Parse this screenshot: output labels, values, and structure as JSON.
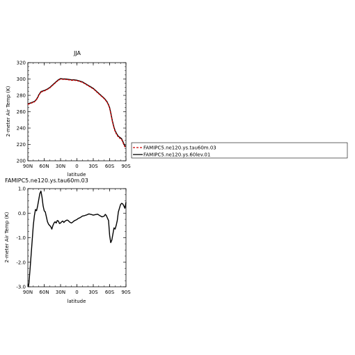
{
  "chart_data": [
    {
      "type": "line",
      "title": "JJA",
      "xlabel": "latitude",
      "ylabel": "2-meter Air Temp (K)",
      "xlim": [
        90,
        -90
      ],
      "ylim": [
        200,
        320
      ],
      "xticks": [
        90,
        60,
        30,
        0,
        -30,
        -60,
        -90
      ],
      "xtick_labels": [
        "90N",
        "60N",
        "30N",
        "0",
        "30S",
        "60S",
        "90S"
      ],
      "yticks": [
        200,
        220,
        240,
        260,
        280,
        300,
        320
      ],
      "ytick_labels": [
        "200",
        "220",
        "240",
        "260",
        "280",
        "300",
        "320"
      ],
      "legend_position": "right",
      "series": [
        {
          "name": "FAMIPC5.ne120.ys.tau60m.03",
          "color": "#cc0000",
          "dash": "dashed",
          "x": [
            90,
            86,
            82,
            78,
            75,
            72,
            70,
            66,
            62,
            58,
            55,
            50,
            45,
            40,
            35,
            30,
            25,
            20,
            15,
            10,
            5,
            0,
            -5,
            -10,
            -15,
            -20,
            -25,
            -30,
            -35,
            -40,
            -45,
            -50,
            -55,
            -58,
            -60,
            -62,
            -65,
            -68,
            -70,
            -73,
            -76,
            -78,
            -80,
            -82,
            -84,
            -86,
            -88,
            -90
          ],
          "y": [
            269,
            270,
            271,
            272,
            274,
            277,
            280,
            284,
            285,
            286,
            287,
            289,
            292,
            295,
            298,
            300,
            299.5,
            299.5,
            299,
            298.5,
            298.5,
            298,
            297,
            296,
            294,
            292,
            290,
            288,
            285,
            282,
            279,
            276,
            272,
            268,
            264,
            258,
            248,
            240,
            236,
            232,
            229,
            228,
            227,
            226,
            223,
            220,
            217,
            217
          ]
        },
        {
          "name": "FAMIPC5.ne120.ys.60lev.01",
          "color": "#000000",
          "dash": "solid",
          "x": [
            90,
            86,
            82,
            78,
            75,
            72,
            70,
            66,
            62,
            58,
            55,
            50,
            45,
            40,
            35,
            30,
            25,
            20,
            15,
            10,
            5,
            0,
            -5,
            -10,
            -15,
            -20,
            -25,
            -30,
            -35,
            -40,
            -45,
            -50,
            -55,
            -58,
            -60,
            -62,
            -65,
            -68,
            -70,
            -73,
            -76,
            -78,
            -80,
            -82,
            -84,
            -86,
            -88,
            -90
          ],
          "y": [
            269.5,
            270.5,
            271.5,
            272.5,
            274.5,
            277.5,
            280.5,
            284.5,
            285.5,
            286.5,
            287.5,
            289.5,
            292.5,
            295.5,
            298.5,
            300.5,
            300,
            300,
            299.5,
            299,
            299,
            298.5,
            297.5,
            296.5,
            294.5,
            292.5,
            290.5,
            288.5,
            285.5,
            282.5,
            279.5,
            276.5,
            272.5,
            268.5,
            265,
            259,
            249,
            241,
            237,
            233,
            230,
            229,
            228,
            227,
            224,
            221,
            218,
            218
          ]
        }
      ]
    },
    {
      "type": "line",
      "title": "FAMIPC5.ne120.ys.tau60m.03",
      "xlabel": "latitude",
      "ylabel": "2-meter Air Temp (K)",
      "xlim": [
        90,
        -90
      ],
      "ylim": [
        -3.0,
        1.0
      ],
      "xticks": [
        90,
        60,
        30,
        0,
        -30,
        -60,
        -90
      ],
      "xtick_labels": [
        "90N",
        "60N",
        "30N",
        "0",
        "30S",
        "60S",
        "90S"
      ],
      "yticks": [
        -3.0,
        -2.0,
        -1.0,
        0.0,
        1.0
      ],
      "ytick_labels": [
        "-3.0",
        "-2.0",
        "-1.0",
        "0.0",
        "1.0"
      ],
      "series": [
        {
          "color": "#000000",
          "dash": "solid",
          "x": [
            89,
            88,
            86,
            84,
            82,
            80,
            78,
            76,
            74,
            72,
            70,
            68,
            66,
            64,
            62,
            60,
            58,
            56,
            54,
            52,
            50,
            48,
            46,
            44,
            42,
            40,
            38,
            36,
            34,
            32,
            30,
            28,
            26,
            24,
            22,
            20,
            18,
            16,
            14,
            12,
            10,
            8,
            6,
            4,
            2,
            0,
            -2,
            -4,
            -6,
            -8,
            -10,
            -14,
            -18,
            -22,
            -26,
            -30,
            -34,
            -38,
            -42,
            -46,
            -50,
            -52,
            -54,
            -56,
            -58,
            -60,
            -62,
            -64,
            -66,
            -68,
            -70,
            -72,
            -74,
            -76,
            -78,
            -80,
            -82,
            -84,
            -86,
            -88,
            -90
          ],
          "y": [
            -3.0,
            -2.85,
            -2.3,
            -1.7,
            -1.1,
            -0.5,
            -0.1,
            0.15,
            0.1,
            0.3,
            0.55,
            0.8,
            0.9,
            0.65,
            0.3,
            0.1,
            0.05,
            -0.15,
            -0.35,
            -0.45,
            -0.5,
            -0.55,
            -0.65,
            -0.5,
            -0.4,
            -0.35,
            -0.4,
            -0.3,
            -0.32,
            -0.42,
            -0.4,
            -0.35,
            -0.32,
            -0.38,
            -0.33,
            -0.3,
            -0.28,
            -0.3,
            -0.35,
            -0.38,
            -0.4,
            -0.37,
            -0.33,
            -0.3,
            -0.28,
            -0.26,
            -0.22,
            -0.2,
            -0.18,
            -0.15,
            -0.12,
            -0.1,
            -0.07,
            -0.03,
            -0.05,
            -0.08,
            -0.06,
            -0.04,
            -0.1,
            -0.15,
            -0.12,
            -0.05,
            -0.1,
            -0.2,
            -0.3,
            -0.9,
            -1.2,
            -1.1,
            -0.85,
            -0.6,
            -0.65,
            -0.5,
            -0.3,
            0.05,
            0.2,
            0.35,
            0.4,
            0.38,
            0.3,
            0.2,
            0.45
          ]
        }
      ]
    }
  ]
}
